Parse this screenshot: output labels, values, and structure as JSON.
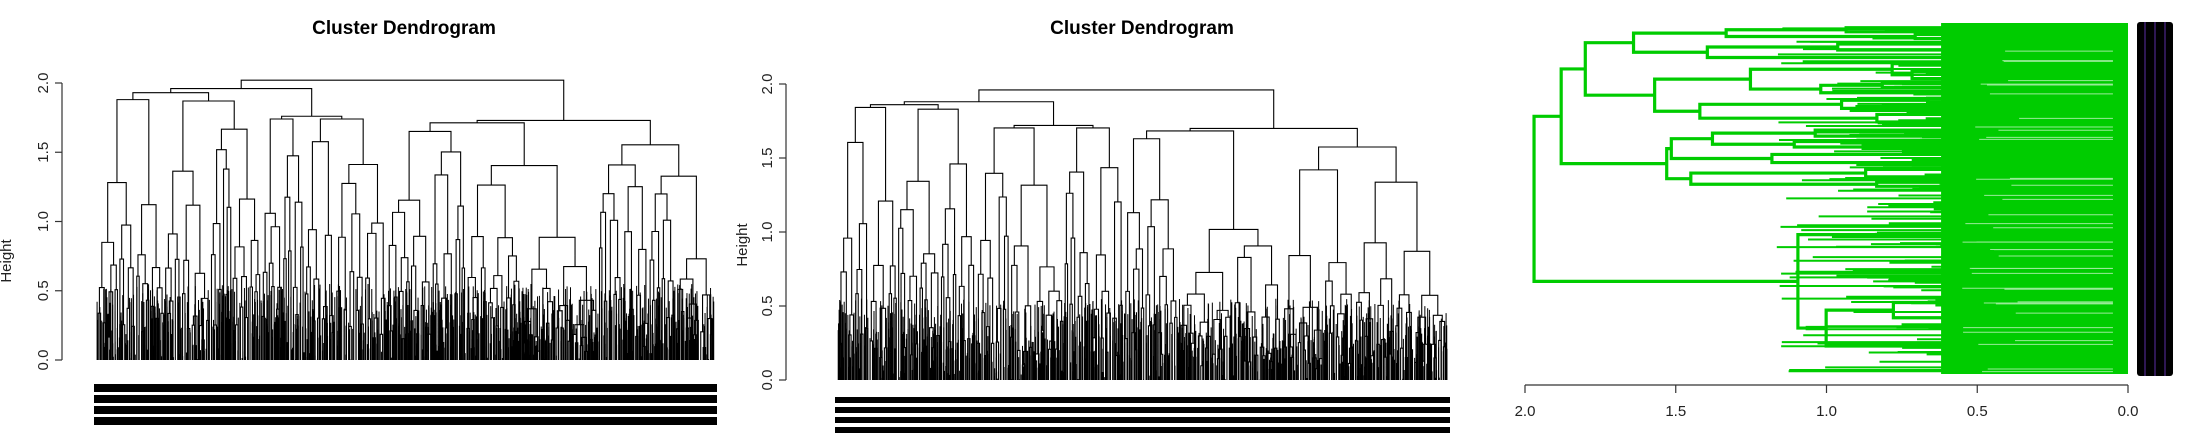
{
  "chart_data": [
    {
      "type": "dendrogram",
      "title": "Cluster Dendrogram",
      "ylabel": "Height",
      "xlabel": "",
      "orientation": "vertical",
      "ylim": [
        0,
        2.0
      ],
      "y_ticks": [
        "0.0",
        "0.5",
        "1.0",
        "1.5",
        "2.0"
      ],
      "leaf_count": 256,
      "root_height": 2.02,
      "top_merge_heights": [
        2.02,
        1.96,
        1.93,
        1.88,
        1.87,
        1.76,
        1.74,
        1.74,
        1.73,
        1.73,
        1.65
      ],
      "line_color": "#000000",
      "leaf_labels_overplotted": true
    },
    {
      "type": "dendrogram",
      "title": "Cluster Dendrogram",
      "ylabel": "Height",
      "xlabel": "",
      "orientation": "vertical",
      "ylim": [
        0,
        2.0
      ],
      "y_ticks": [
        "0.0",
        "0.5",
        "1.0",
        "1.5",
        "2.0"
      ],
      "leaf_count": 256,
      "root_height": 1.96,
      "top_merge_heights": [
        1.96,
        1.88,
        1.86,
        1.85,
        1.83,
        1.72,
        1.71,
        1.71,
        1.7,
        1.69,
        1.63
      ],
      "line_color": "#000000",
      "leaf_labels_overplotted": true
    },
    {
      "type": "dendrogram",
      "title": "",
      "ylabel": "",
      "xlabel": "",
      "orientation": "horizontal",
      "xlim": [
        2.0,
        0.0
      ],
      "x_ticks": [
        "2.0",
        "1.5",
        "1.0",
        "0.5",
        "0.0"
      ],
      "leaf_count": 128,
      "root_height": 1.97,
      "top_merge_heights": [
        1.97,
        1.88,
        1.8,
        1.64,
        1.57,
        1.53,
        1.52,
        1.45
      ],
      "line_color": "#00CC00",
      "leaf_labels_overplotted": true
    }
  ]
}
